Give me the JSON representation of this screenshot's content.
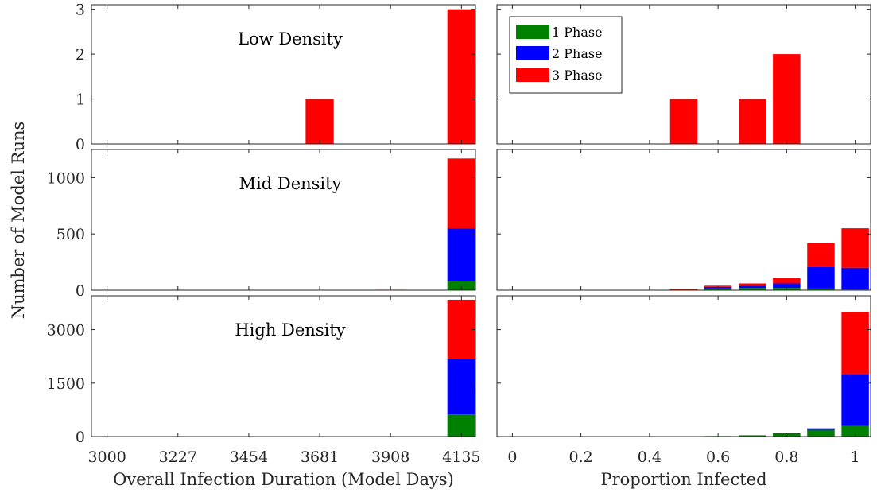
{
  "chart_data": {
    "type": "bar",
    "stacked": true,
    "ylabel": "Number of Model Runs",
    "legend": {
      "placement": "top-left of top-right panel",
      "entries": [
        "1 Phase",
        "2 Phase",
        "3 Phase"
      ]
    },
    "colors": {
      "1 Phase": "#008000",
      "2 Phase": "#0000ff",
      "3 Phase": "#ff0000"
    },
    "series_names": [
      "1 Phase",
      "2 Phase",
      "3 Phase"
    ],
    "columns": [
      {
        "xlabel": "Overall Infection Duration (Model Days)",
        "xlim": [
          2950,
          4180
        ],
        "xticks": [
          3000,
          3227,
          3454,
          3681,
          3908,
          4135
        ],
        "xtick_labels": [
          "3000",
          "3227",
          "3454",
          "3681",
          "3908",
          "4135"
        ],
        "bar_width": 90
      },
      {
        "xlabel": "Proportion Infected",
        "xlim": [
          -0.045,
          1.045
        ],
        "xticks": [
          0,
          0.2,
          0.4,
          0.6,
          0.8,
          1
        ],
        "xtick_labels": [
          "0",
          "0.2",
          "0.4",
          "0.6",
          "0.8",
          "1"
        ],
        "bar_width": 0.08
      }
    ],
    "rows": [
      {
        "title": "Low Density",
        "ylim": [
          0,
          3.1
        ],
        "yticks": [
          0,
          1,
          2,
          3
        ],
        "ytick_labels": [
          "0",
          "1",
          "2",
          "3"
        ],
        "panels": [
          {
            "x": [
              3681,
              4135
            ],
            "series": [
              {
                "name": "1 Phase",
                "values": [
                  0,
                  0
                ]
              },
              {
                "name": "2 Phase",
                "values": [
                  0,
                  0
                ]
              },
              {
                "name": "3 Phase",
                "values": [
                  1,
                  3
                ]
              }
            ]
          },
          {
            "x": [
              0.5,
              0.7,
              0.8
            ],
            "series": [
              {
                "name": "1 Phase",
                "values": [
                  0,
                  0,
                  0
                ]
              },
              {
                "name": "2 Phase",
                "values": [
                  0,
                  0,
                  0
                ]
              },
              {
                "name": "3 Phase",
                "values": [
                  1,
                  1,
                  2
                ]
              }
            ]
          }
        ]
      },
      {
        "title": "Mid Density",
        "ylim": [
          0,
          1250
        ],
        "yticks": [
          0,
          500,
          1000
        ],
        "ytick_labels": [
          "0",
          "500",
          "1000"
        ],
        "panels": [
          {
            "x": [
              3227,
              3908,
              4135
            ],
            "series": [
              {
                "name": "1 Phase",
                "values": [
                  0,
                  0,
                  80
                ]
              },
              {
                "name": "2 Phase",
                "values": [
                  0,
                  0,
                  470
                ]
              },
              {
                "name": "3 Phase",
                "values": [
                  3,
                  4,
                  620
                ]
              }
            ]
          },
          {
            "x": [
              0.5,
              0.6,
              0.7,
              0.8,
              0.9,
              1.0
            ],
            "series": [
              {
                "name": "1 Phase",
                "values": [
                  8,
                  15,
                  20,
                  20,
                  15,
                  5
                ]
              },
              {
                "name": "2 Phase",
                "values": [
                  0,
                  15,
                  20,
                  40,
                  190,
                  195
                ]
              },
              {
                "name": "3 Phase",
                "values": [
                  2,
                  10,
                  20,
                  50,
                  215,
                  350
                ]
              }
            ]
          }
        ]
      },
      {
        "title": "High Density",
        "ylim": [
          0,
          3950
        ],
        "yticks": [
          0,
          1500,
          3000
        ],
        "ytick_labels": [
          "0",
          "1500",
          "3000"
        ],
        "panels": [
          {
            "x": [
              4135
            ],
            "series": [
              {
                "name": "1 Phase",
                "values": [
                  620
                ]
              },
              {
                "name": "2 Phase",
                "values": [
                  1550
                ]
              },
              {
                "name": "3 Phase",
                "values": [
                  1670
                ]
              }
            ]
          },
          {
            "x": [
              0.6,
              0.7,
              0.8,
              0.9,
              1.0
            ],
            "series": [
              {
                "name": "1 Phase",
                "values": [
                  15,
                  35,
                  80,
                  190,
                  300
                ]
              },
              {
                "name": "2 Phase",
                "values": [
                  0,
                  0,
                  5,
                  40,
                  1450
                ]
              },
              {
                "name": "3 Phase",
                "values": [
                  0,
                  0,
                  0,
                  0,
                  1750
                ]
              }
            ]
          }
        ]
      }
    ]
  }
}
